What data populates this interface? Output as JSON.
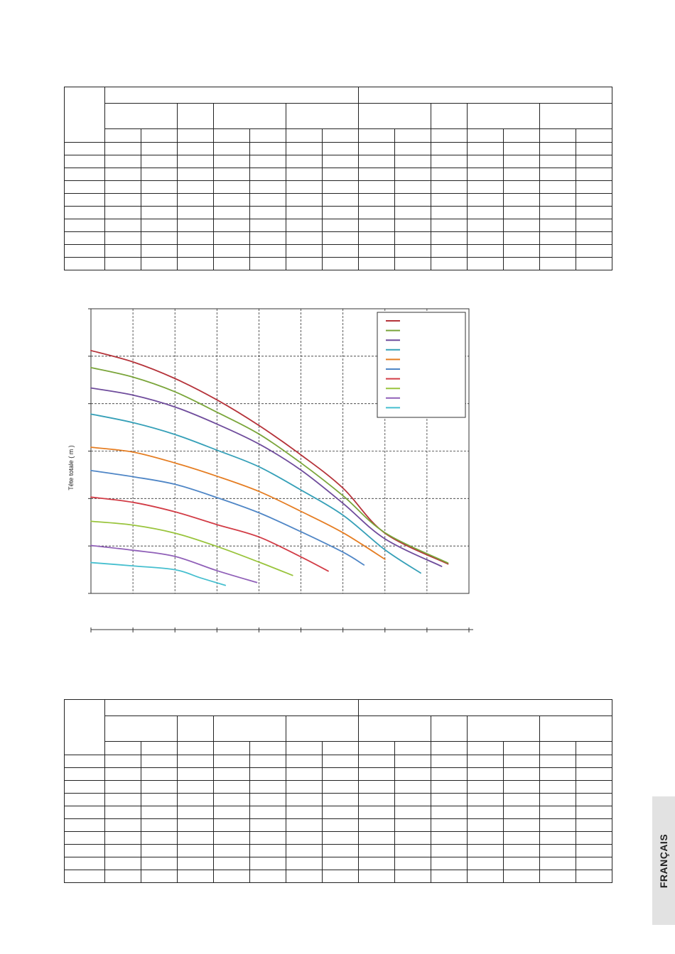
{
  "side_tab": {
    "label": "FRANÇAIS"
  },
  "tables": {
    "top": {
      "data_rows": 10,
      "cells": []
    },
    "bottom": {
      "data_rows": 10,
      "cells": []
    }
  },
  "chart_data": {
    "type": "line",
    "title": "",
    "xlabel": "",
    "ylabel": "Tête totale ( m )",
    "xlim": [
      0,
      9
    ],
    "ylim": [
      0,
      6
    ],
    "grid": true,
    "grid_style": "dashed",
    "legend_position": "top-right",
    "series": [
      {
        "color": "#b5333a",
        "points": [
          [
            0,
            5.12
          ],
          [
            1,
            4.88
          ],
          [
            2,
            4.53
          ],
          [
            3,
            4.08
          ],
          [
            4,
            3.54
          ],
          [
            5,
            2.92
          ],
          [
            6,
            2.22
          ],
          [
            7,
            1.27
          ],
          [
            8.5,
            0.62
          ]
        ]
      },
      {
        "color": "#7aa53a",
        "points": [
          [
            0,
            4.76
          ],
          [
            1,
            4.56
          ],
          [
            2,
            4.25
          ],
          [
            3,
            3.82
          ],
          [
            4,
            3.36
          ],
          [
            5,
            2.75
          ],
          [
            6,
            2.06
          ],
          [
            7,
            1.28
          ],
          [
            8.5,
            0.64
          ]
        ]
      },
      {
        "color": "#6f4c9c",
        "points": [
          [
            0,
            4.33
          ],
          [
            1,
            4.18
          ],
          [
            2,
            3.93
          ],
          [
            3,
            3.57
          ],
          [
            4,
            3.15
          ],
          [
            5,
            2.6
          ],
          [
            6,
            1.9
          ],
          [
            7,
            1.15
          ],
          [
            8.35,
            0.57
          ]
        ]
      },
      {
        "color": "#36a0b8",
        "points": [
          [
            0,
            3.78
          ],
          [
            1,
            3.6
          ],
          [
            2,
            3.35
          ],
          [
            3,
            3.02
          ],
          [
            4,
            2.67
          ],
          [
            5,
            2.18
          ],
          [
            6,
            1.65
          ],
          [
            7,
            0.92
          ],
          [
            7.85,
            0.43
          ]
        ]
      },
      {
        "color": "#e57d22",
        "points": [
          [
            0,
            3.08
          ],
          [
            1,
            2.98
          ],
          [
            2,
            2.75
          ],
          [
            3,
            2.47
          ],
          [
            4,
            2.15
          ],
          [
            5,
            1.73
          ],
          [
            6,
            1.28
          ],
          [
            7,
            0.72
          ]
        ]
      },
      {
        "color": "#4f86c6",
        "points": [
          [
            0,
            2.59
          ],
          [
            1,
            2.46
          ],
          [
            2,
            2.3
          ],
          [
            3,
            2.02
          ],
          [
            4,
            1.7
          ],
          [
            5,
            1.3
          ],
          [
            6,
            0.87
          ],
          [
            6.5,
            0.6
          ]
        ]
      },
      {
        "color": "#d23c46",
        "points": [
          [
            0,
            2.03
          ],
          [
            1,
            1.92
          ],
          [
            2,
            1.72
          ],
          [
            3,
            1.45
          ],
          [
            4,
            1.19
          ],
          [
            5,
            0.77
          ],
          [
            5.65,
            0.47
          ]
        ]
      },
      {
        "color": "#99c43c",
        "points": [
          [
            0,
            1.52
          ],
          [
            1,
            1.44
          ],
          [
            2,
            1.27
          ],
          [
            3,
            0.99
          ],
          [
            4,
            0.66
          ],
          [
            4.8,
            0.38
          ]
        ]
      },
      {
        "color": "#9060b8",
        "points": [
          [
            0,
            1.01
          ],
          [
            1,
            0.91
          ],
          [
            2,
            0.78
          ],
          [
            3,
            0.48
          ],
          [
            3.95,
            0.23
          ]
        ]
      },
      {
        "color": "#46bfcf",
        "points": [
          [
            0,
            0.65
          ],
          [
            1,
            0.58
          ],
          [
            2,
            0.5
          ],
          [
            2.6,
            0.33
          ],
          [
            3.2,
            0.17
          ]
        ]
      }
    ]
  }
}
